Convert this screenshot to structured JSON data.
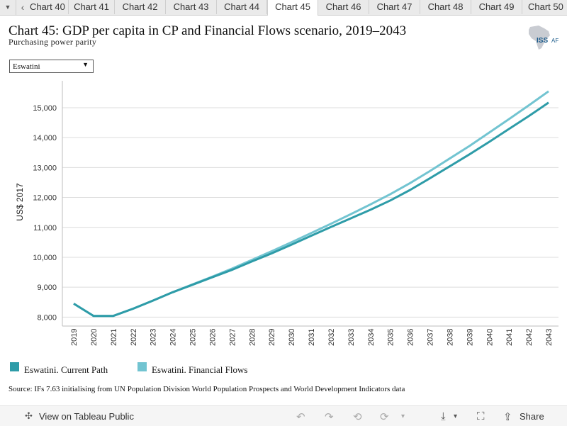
{
  "tabs": {
    "menu_icon": "caret-down-icon",
    "prev_icon": "chevron-left-icon",
    "items": [
      "Chart 40",
      "Chart 41",
      "Chart 42",
      "Chart 43",
      "Chart 44",
      "Chart 45",
      "Chart 46",
      "Chart 47",
      "Chart 48",
      "Chart 49",
      "Chart 50"
    ],
    "active": "Chart 45"
  },
  "header": {
    "title": "Chart 45: GDP per capita in CP and Financial Flows scenario, 2019–2043",
    "subtitle": "Purchasing power parity",
    "logo_text": "ISS",
    "logo_sub": "AF"
  },
  "filter": {
    "selected": "Eswatini"
  },
  "chart_data": {
    "type": "line",
    "ylabel": "US$ 2017",
    "xlabel": "",
    "ylim": [
      7700,
      15900
    ],
    "yticks": [
      8000,
      9000,
      10000,
      11000,
      12000,
      13000,
      14000,
      15000
    ],
    "ytick_labels": [
      "8,000",
      "9,000",
      "10,000",
      "11,000",
      "12,000",
      "13,000",
      "14,000",
      "15,000"
    ],
    "x": [
      "2019",
      "2020",
      "2021",
      "2022",
      "2023",
      "2024",
      "2025",
      "2026",
      "2027",
      "2028",
      "2029",
      "2030",
      "2031",
      "2032",
      "2033",
      "2034",
      "2035",
      "2036",
      "2037",
      "2038",
      "2039",
      "2040",
      "2041",
      "2042",
      "2043"
    ],
    "grid": "horizontal",
    "legend_position": "bottom-left",
    "series": [
      {
        "name": "Eswatini. Current Path",
        "color": "#2e9ca8",
        "values": [
          8450,
          8040,
          8040,
          8280,
          8550,
          8830,
          9080,
          9330,
          9580,
          9860,
          10130,
          10420,
          10720,
          11010,
          11300,
          11590,
          11900,
          12250,
          12640,
          13040,
          13440,
          13860,
          14290,
          14720,
          15170
        ]
      },
      {
        "name": "Eswatini. Financial Flows",
        "color": "#72c4d1",
        "values": [
          8450,
          8040,
          8040,
          8280,
          8550,
          8830,
          9090,
          9350,
          9620,
          9910,
          10200,
          10500,
          10810,
          11120,
          11440,
          11770,
          12110,
          12480,
          12880,
          13300,
          13720,
          14170,
          14620,
          15080,
          15550
        ]
      }
    ]
  },
  "source": "Source: IFs 7.63 initialising from UN Population Division World Population Prospects and World Development Indicators data",
  "footer": {
    "view_label": "View on Tableau Public",
    "share_label": "Share",
    "icons": [
      "tableau-icon",
      "undo-icon",
      "redo-icon",
      "revert-icon",
      "refresh-icon",
      "download-icon",
      "fullscreen-icon",
      "share-icon"
    ]
  }
}
